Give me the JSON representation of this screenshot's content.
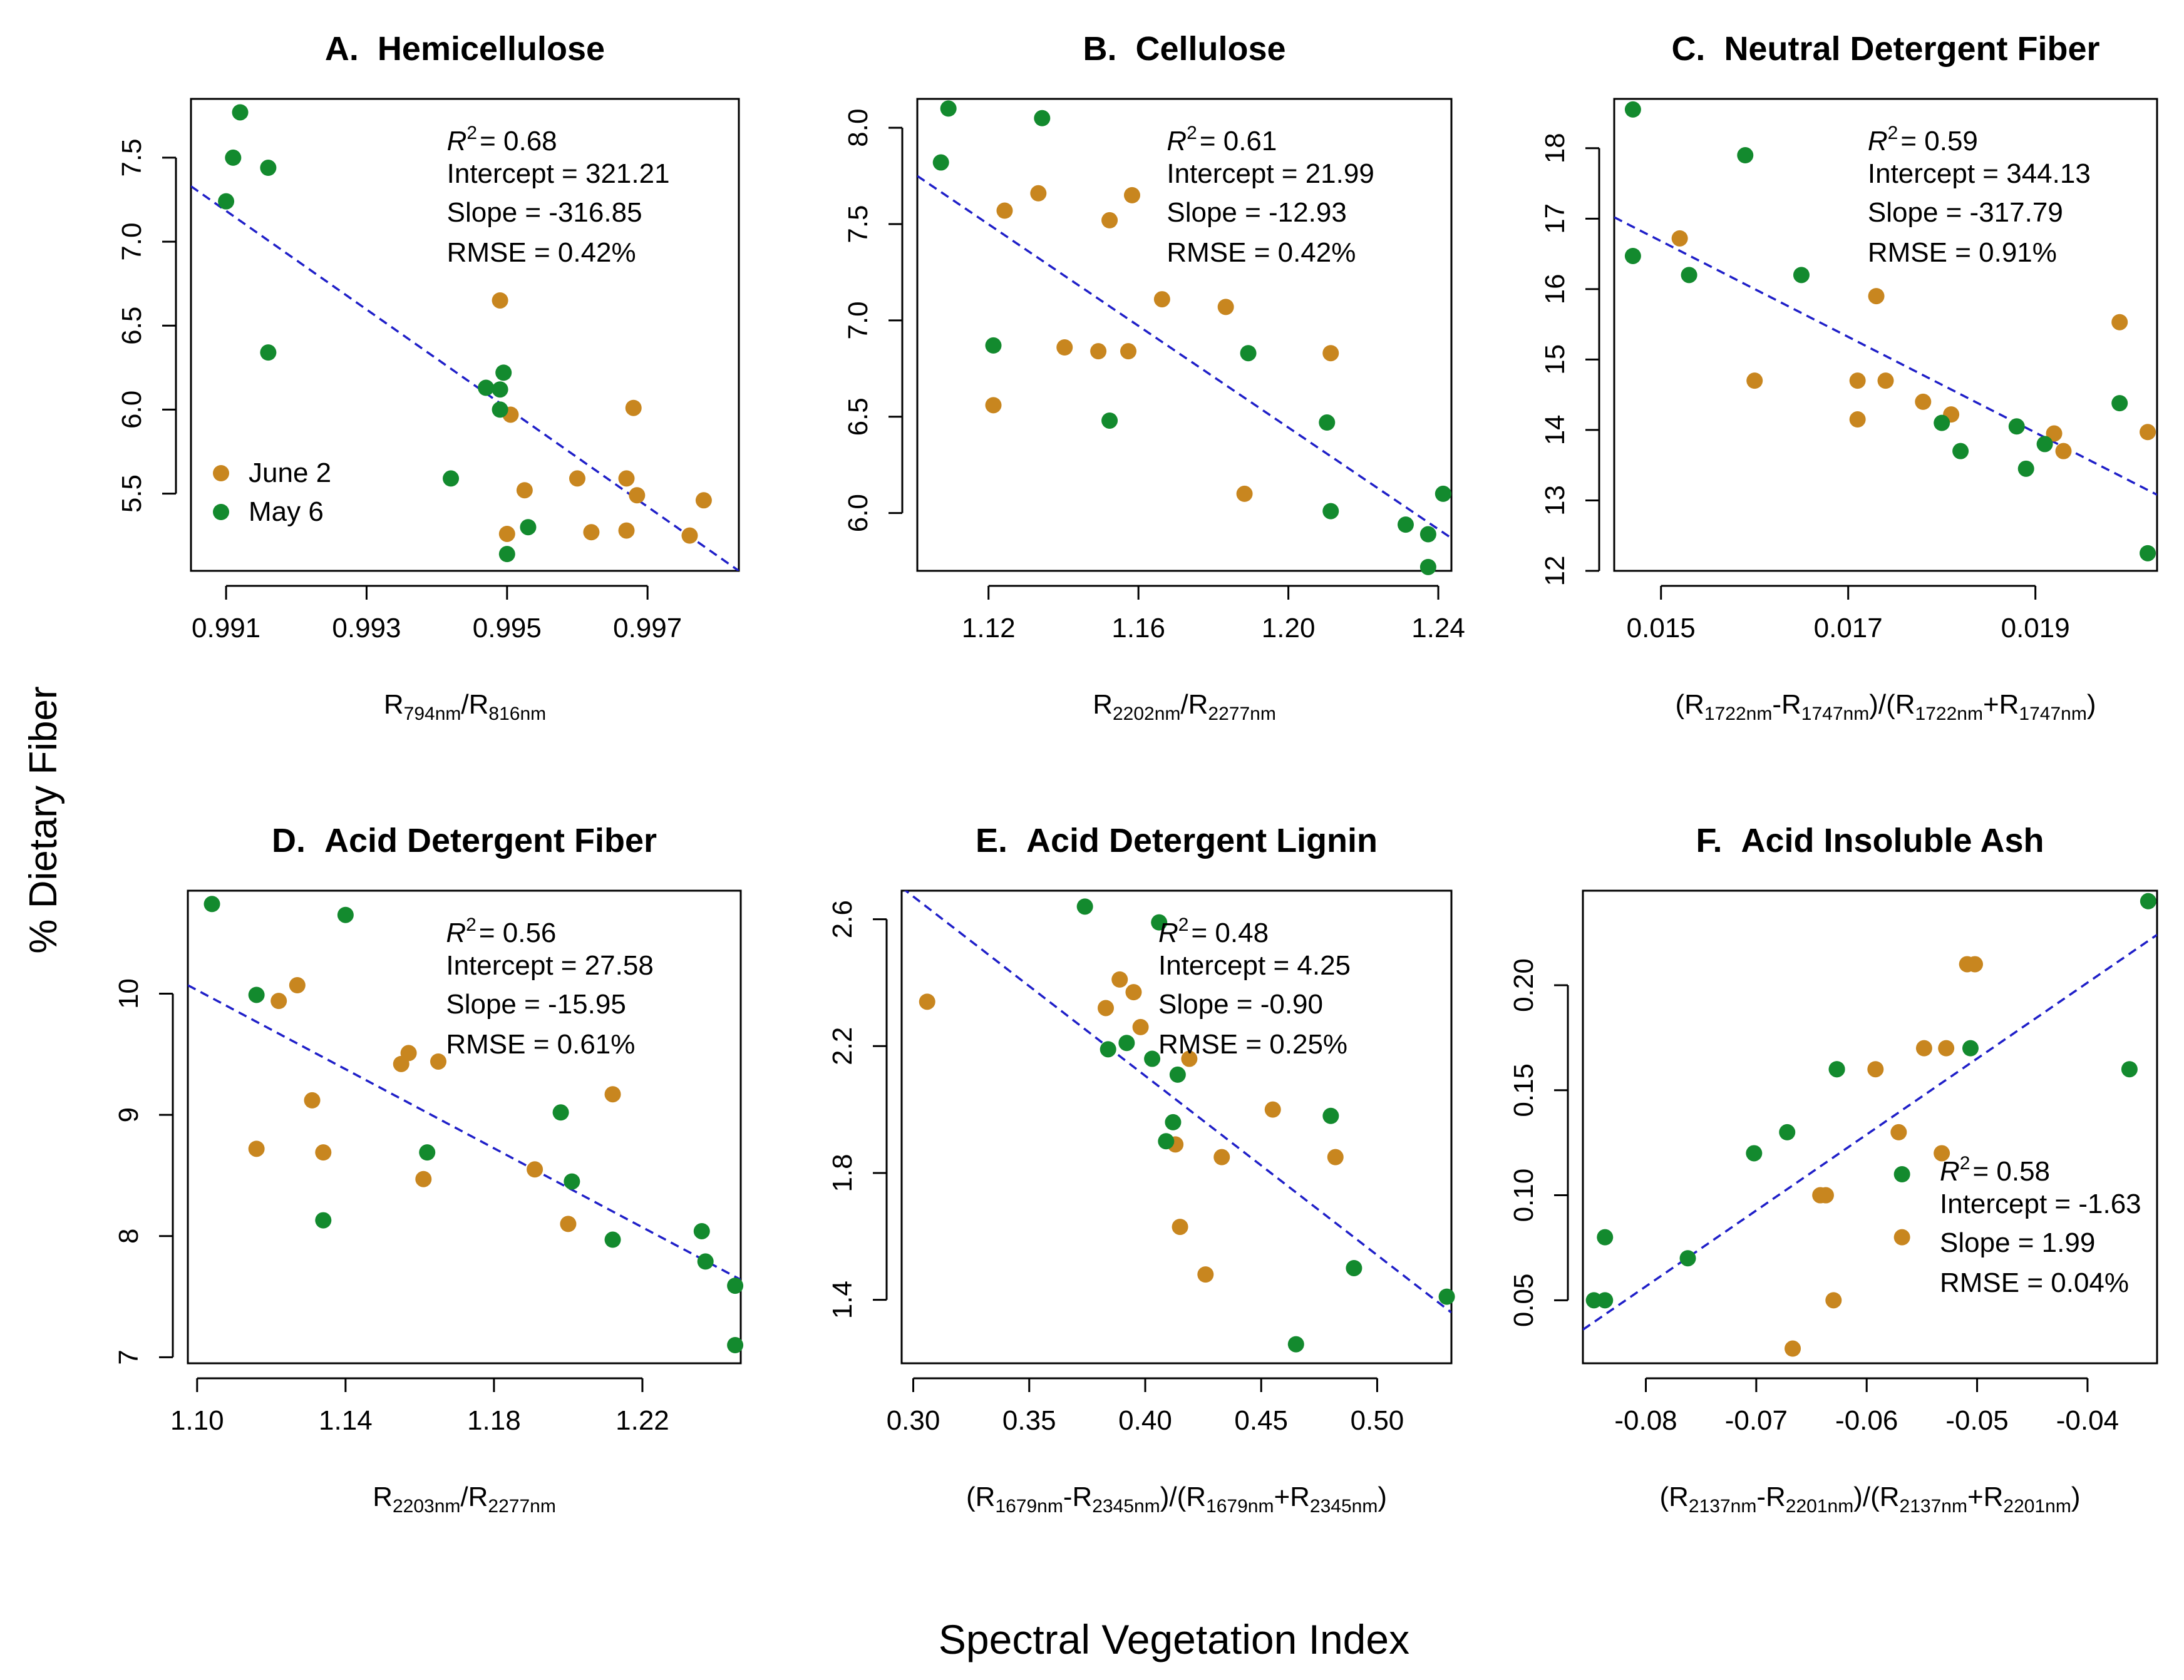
{
  "figure": {
    "ylabel": "% Dietary Fiber",
    "xlabel": "Spectral Vegetation Index",
    "legend": [
      {
        "label": "June 2",
        "color": "#C8861F"
      },
      {
        "label": "May 6",
        "color": "#138A2E"
      }
    ],
    "colors": {
      "june": "#C8861F",
      "may": "#138A2E",
      "fit": "#1F1FC8"
    }
  },
  "chart_data": [
    {
      "type": "scatter",
      "letter": "A.",
      "title": "Hemicellulose",
      "xlabel": {
        "prefix": "R",
        "sub1": "794nm",
        "mid": "/R",
        "sub2": "816nm"
      },
      "xlim": [
        0.9905,
        0.9983
      ],
      "ylim": [
        5.04,
        7.85
      ],
      "xticks": [
        0.991,
        0.993,
        0.995,
        0.997
      ],
      "xtick_labels": [
        "0.991",
        "0.993",
        "0.995",
        "0.997"
      ],
      "yticks": [
        5.5,
        6.0,
        6.5,
        7.0,
        7.5
      ],
      "ytick_labels": [
        "5.5",
        "6.0",
        "6.5",
        "7.0",
        "7.5"
      ],
      "stats": {
        "r2": "= 0.68",
        "intercept": "Intercept = 321.21",
        "slope": "Slope = -316.85",
        "rmse": "RMSE = 0.42%"
      },
      "stats_pos": "top-right",
      "show_legend": true,
      "fit": {
        "x": [
          0.9905,
          0.9983
        ],
        "y": [
          7.33,
          5.04
        ]
      },
      "series": [
        {
          "name": "June 2",
          "points": [
            [
              0.9949,
              6.65
            ],
            [
              0.99505,
              5.97
            ],
            [
              0.99525,
              5.52
            ],
            [
              0.995,
              5.26
            ],
            [
              0.996,
              5.59
            ],
            [
              0.9962,
              5.27
            ],
            [
              0.9967,
              5.59
            ],
            [
              0.9968,
              6.01
            ],
            [
              0.99685,
              5.49
            ],
            [
              0.9967,
              5.28
            ],
            [
              0.9976,
              5.25
            ],
            [
              0.9978,
              5.46
            ]
          ]
        },
        {
          "name": "May 6",
          "points": [
            [
              0.991,
              7.24
            ],
            [
              0.9911,
              7.5
            ],
            [
              0.9912,
              7.77
            ],
            [
              0.9916,
              7.44
            ],
            [
              0.9916,
              6.34
            ],
            [
              0.9942,
              5.59
            ],
            [
              0.9947,
              6.13
            ],
            [
              0.9949,
              6.12
            ],
            [
              0.99495,
              6.22
            ],
            [
              0.9949,
              6.0
            ],
            [
              0.9953,
              5.3
            ],
            [
              0.995,
              5.14
            ]
          ]
        }
      ]
    },
    {
      "type": "scatter",
      "letter": "B.",
      "title": "Cellulose",
      "xlabel": {
        "prefix": "R",
        "sub1": "2202nm",
        "mid": "/R",
        "sub2": "2277nm"
      },
      "xlim": [
        1.101,
        1.2435
      ],
      "ylim": [
        5.7,
        8.15
      ],
      "xticks": [
        1.12,
        1.16,
        1.2,
        1.24
      ],
      "xtick_labels": [
        "1.12",
        "1.16",
        "1.20",
        "1.24"
      ],
      "yticks": [
        6.0,
        6.5,
        7.0,
        7.5,
        8.0
      ],
      "ytick_labels": [
        "6.0",
        "6.5",
        "7.0",
        "7.5",
        "8.0"
      ],
      "stats": {
        "r2": "= 0.61",
        "intercept": "Intercept = 21.99",
        "slope": "Slope = -12.93",
        "rmse": "RMSE = 0.42%"
      },
      "stats_pos": "top-right",
      "show_legend": false,
      "fit": {
        "x": [
          1.101,
          1.2435
        ],
        "y": [
          7.75,
          5.87
        ]
      },
      "series": [
        {
          "name": "June 2",
          "points": [
            [
              1.1213,
              6.56
            ],
            [
              1.1243,
              7.57
            ],
            [
              1.1333,
              7.66
            ],
            [
              1.1403,
              6.86
            ],
            [
              1.1493,
              6.84
            ],
            [
              1.1523,
              7.52
            ],
            [
              1.1573,
              6.84
            ],
            [
              1.1583,
              7.65
            ],
            [
              1.1663,
              7.11
            ],
            [
              1.1833,
              7.07
            ],
            [
              1.1883,
              6.1
            ],
            [
              1.2113,
              6.83
            ]
          ]
        },
        {
          "name": "May 6",
          "points": [
            [
              1.1073,
              7.82
            ],
            [
              1.1093,
              8.1
            ],
            [
              1.1213,
              6.87
            ],
            [
              1.1343,
              8.05
            ],
            [
              1.1523,
              6.48
            ],
            [
              1.1893,
              6.83
            ],
            [
              1.2103,
              6.47
            ],
            [
              1.2113,
              6.01
            ],
            [
              1.2313,
              5.94
            ],
            [
              1.2373,
              5.89
            ],
            [
              1.2373,
              5.72
            ],
            [
              1.2413,
              6.1
            ]
          ]
        }
      ]
    },
    {
      "type": "scatter",
      "letter": "C.",
      "title": "Neutral Detergent Fiber",
      "xlabel": {
        "frac": [
          "1722nm",
          "1747nm",
          "1722nm",
          "1747nm"
        ]
      },
      "xlim": [
        0.0145,
        0.0203
      ],
      "ylim": [
        12.0,
        18.7
      ],
      "xticks": [
        0.015,
        0.017,
        0.019
      ],
      "xtick_labels": [
        "0.015",
        "0.017",
        "0.019"
      ],
      "yticks": [
        12,
        13,
        14,
        15,
        16,
        17,
        18
      ],
      "ytick_labels": [
        "12",
        "13",
        "14",
        "15",
        "16",
        "17",
        "18"
      ],
      "stats": {
        "r2": "= 0.59",
        "intercept": "Intercept = 344.13",
        "slope": "Slope = -317.79",
        "rmse": "RMSE = 0.91%"
      },
      "stats_pos": "top-right",
      "show_legend": false,
      "fit": {
        "x": [
          0.0145,
          0.0203
        ],
        "y": [
          17.02,
          13.08
        ]
      },
      "series": [
        {
          "name": "June 2",
          "points": [
            [
              0.0152,
              16.72
            ],
            [
              0.016,
              14.7
            ],
            [
              0.0171,
              14.15
            ],
            [
              0.0171,
              14.7
            ],
            [
              0.0173,
              15.9
            ],
            [
              0.0174,
              14.7
            ],
            [
              0.0178,
              14.4
            ],
            [
              0.0181,
              14.22
            ],
            [
              0.0192,
              13.95
            ],
            [
              0.0193,
              13.7
            ],
            [
              0.0199,
              15.53
            ],
            [
              0.0202,
              13.97
            ]
          ]
        },
        {
          "name": "May 6",
          "points": [
            [
              0.0147,
              18.55
            ],
            [
              0.0147,
              16.47
            ],
            [
              0.0153,
              16.2
            ],
            [
              0.0159,
              17.9
            ],
            [
              0.0165,
              16.2
            ],
            [
              0.018,
              14.1
            ],
            [
              0.0182,
              13.7
            ],
            [
              0.0188,
              14.05
            ],
            [
              0.0189,
              13.45
            ],
            [
              0.0191,
              13.8
            ],
            [
              0.0199,
              14.38
            ],
            [
              0.0202,
              12.25
            ]
          ]
        }
      ]
    },
    {
      "type": "scatter",
      "letter": "D.",
      "title": "Acid Detergent Fiber",
      "xlabel": {
        "prefix": "R",
        "sub1": "2203nm",
        "mid": "/R",
        "sub2": "2277nm"
      },
      "xlim": [
        1.0975,
        1.2465
      ],
      "ylim": [
        6.95,
        10.85
      ],
      "xticks": [
        1.1,
        1.14,
        1.18,
        1.22
      ],
      "xtick_labels": [
        "1.10",
        "1.14",
        "1.18",
        "1.22"
      ],
      "yticks": [
        7,
        8,
        9,
        10
      ],
      "ytick_labels": [
        "7",
        "8",
        "9",
        "10"
      ],
      "stats": {
        "r2": "= 0.56",
        "intercept": "Intercept = 27.58",
        "slope": "Slope = -15.95",
        "rmse": "RMSE = 0.61%"
      },
      "stats_pos": "top-right",
      "show_legend": false,
      "fit": {
        "x": [
          1.0975,
          1.2465
        ],
        "y": [
          10.07,
          7.64
        ]
      },
      "series": [
        {
          "name": "June 2",
          "points": [
            [
              1.116,
              8.72
            ],
            [
              1.122,
              9.94
            ],
            [
              1.127,
              10.07
            ],
            [
              1.131,
              9.12
            ],
            [
              1.134,
              8.69
            ],
            [
              1.155,
              9.42
            ],
            [
              1.157,
              9.51
            ],
            [
              1.161,
              8.47
            ],
            [
              1.165,
              9.44
            ],
            [
              1.191,
              8.55
            ],
            [
              1.2,
              8.1
            ],
            [
              1.212,
              9.17
            ]
          ]
        },
        {
          "name": "May 6",
          "points": [
            [
              1.104,
              10.74
            ],
            [
              1.116,
              9.99
            ],
            [
              1.134,
              8.13
            ],
            [
              1.14,
              10.65
            ],
            [
              1.162,
              8.69
            ],
            [
              1.198,
              9.02
            ],
            [
              1.201,
              8.45
            ],
            [
              1.212,
              7.97
            ],
            [
              1.236,
              8.04
            ],
            [
              1.237,
              7.79
            ],
            [
              1.245,
              7.59
            ],
            [
              1.245,
              7.1
            ]
          ]
        }
      ]
    },
    {
      "type": "scatter",
      "letter": "E.",
      "title": "Acid Detergent Lignin",
      "xlabel": {
        "frac": [
          "1679nm",
          "2345nm",
          "1679nm",
          "2345nm"
        ]
      },
      "xlim": [
        0.295,
        0.532
      ],
      "ylim": [
        1.2,
        2.69
      ],
      "xticks": [
        0.3,
        0.35,
        0.4,
        0.45,
        0.5
      ],
      "xtick_labels": [
        "0.30",
        "0.35",
        "0.40",
        "0.45",
        "0.50"
      ],
      "yticks": [
        1.4,
        1.8,
        2.2,
        2.6
      ],
      "ytick_labels": [
        "1.4",
        "1.8",
        "2.2",
        "2.6"
      ],
      "stats": {
        "r2": "= 0.48",
        "intercept": "Intercept = 4.25",
        "slope": "Slope = -0.90",
        "rmse": "RMSE = 0.25%"
      },
      "stats_pos": "top-right",
      "show_legend": false,
      "fit": {
        "x": [
          0.295,
          0.532
        ],
        "y": [
          2.7,
          1.36
        ]
      },
      "series": [
        {
          "name": "June 2",
          "points": [
            [
              0.306,
              2.34
            ],
            [
              0.383,
              2.32
            ],
            [
              0.389,
              2.41
            ],
            [
              0.395,
              2.37
            ],
            [
              0.398,
              2.26
            ],
            [
              0.413,
              1.89
            ],
            [
              0.415,
              1.63
            ],
            [
              0.419,
              2.16
            ],
            [
              0.426,
              1.48
            ],
            [
              0.433,
              1.85
            ],
            [
              0.455,
              2.0
            ],
            [
              0.482,
              1.85
            ]
          ]
        },
        {
          "name": "May 6",
          "points": [
            [
              0.374,
              2.64
            ],
            [
              0.384,
              2.19
            ],
            [
              0.392,
              2.21
            ],
            [
              0.403,
              2.16
            ],
            [
              0.406,
              2.59
            ],
            [
              0.409,
              1.9
            ],
            [
              0.412,
              1.96
            ],
            [
              0.414,
              2.11
            ],
            [
              0.465,
              1.26
            ],
            [
              0.48,
              1.98
            ],
            [
              0.49,
              1.5
            ],
            [
              0.53,
              1.41
            ]
          ]
        }
      ]
    },
    {
      "type": "scatter",
      "letter": "F.",
      "title": "Acid Insoluble Ash",
      "xlabel": {
        "frac": [
          "2137nm",
          "2201nm",
          "2137nm",
          "2201nm"
        ]
      },
      "xlim": [
        -0.0857,
        -0.0337
      ],
      "ylim": [
        0.02,
        0.245
      ],
      "xticks": [
        -0.08,
        -0.07,
        -0.06,
        -0.05,
        -0.04
      ],
      "xtick_labels": [
        "-0.08",
        "-0.07",
        "-0.06",
        "-0.05",
        "-0.04"
      ],
      "yticks": [
        0.05,
        0.1,
        0.15,
        0.2
      ],
      "ytick_labels": [
        "0.05",
        "0.10",
        "0.15",
        "0.20"
      ],
      "stats": {
        "r2": "= 0.58",
        "intercept": "Intercept = -1.63",
        "slope": "Slope = 1.99",
        "rmse": "RMSE = 0.04%"
      },
      "stats_pos": "bottom-right",
      "show_legend": false,
      "fit": {
        "x": [
          -0.0857,
          -0.0337
        ],
        "y": [
          0.036,
          0.224
        ]
      },
      "series": [
        {
          "name": "June 2",
          "points": [
            [
              -0.0667,
              0.027
            ],
            [
              -0.0642,
              0.1
            ],
            [
              -0.0637,
              0.1
            ],
            [
              -0.063,
              0.05
            ],
            [
              -0.0592,
              0.16
            ],
            [
              -0.0571,
              0.13
            ],
            [
              -0.0568,
              0.08
            ],
            [
              -0.0548,
              0.17
            ],
            [
              -0.0532,
              0.12
            ],
            [
              -0.0528,
              0.17
            ],
            [
              -0.0509,
              0.21
            ],
            [
              -0.0502,
              0.21
            ]
          ]
        },
        {
          "name": "May 6",
          "points": [
            [
              -0.0847,
              0.05
            ],
            [
              -0.0837,
              0.05
            ],
            [
              -0.0837,
              0.08
            ],
            [
              -0.0762,
              0.07
            ],
            [
              -0.0702,
              0.12
            ],
            [
              -0.0672,
              0.13
            ],
            [
              -0.0627,
              0.16
            ],
            [
              -0.0568,
              0.11
            ],
            [
              -0.0506,
              0.17
            ],
            [
              -0.0362,
              0.16
            ],
            [
              -0.0345,
              0.24
            ],
            [
              -0.0627,
              0.16
            ]
          ]
        }
      ]
    }
  ]
}
